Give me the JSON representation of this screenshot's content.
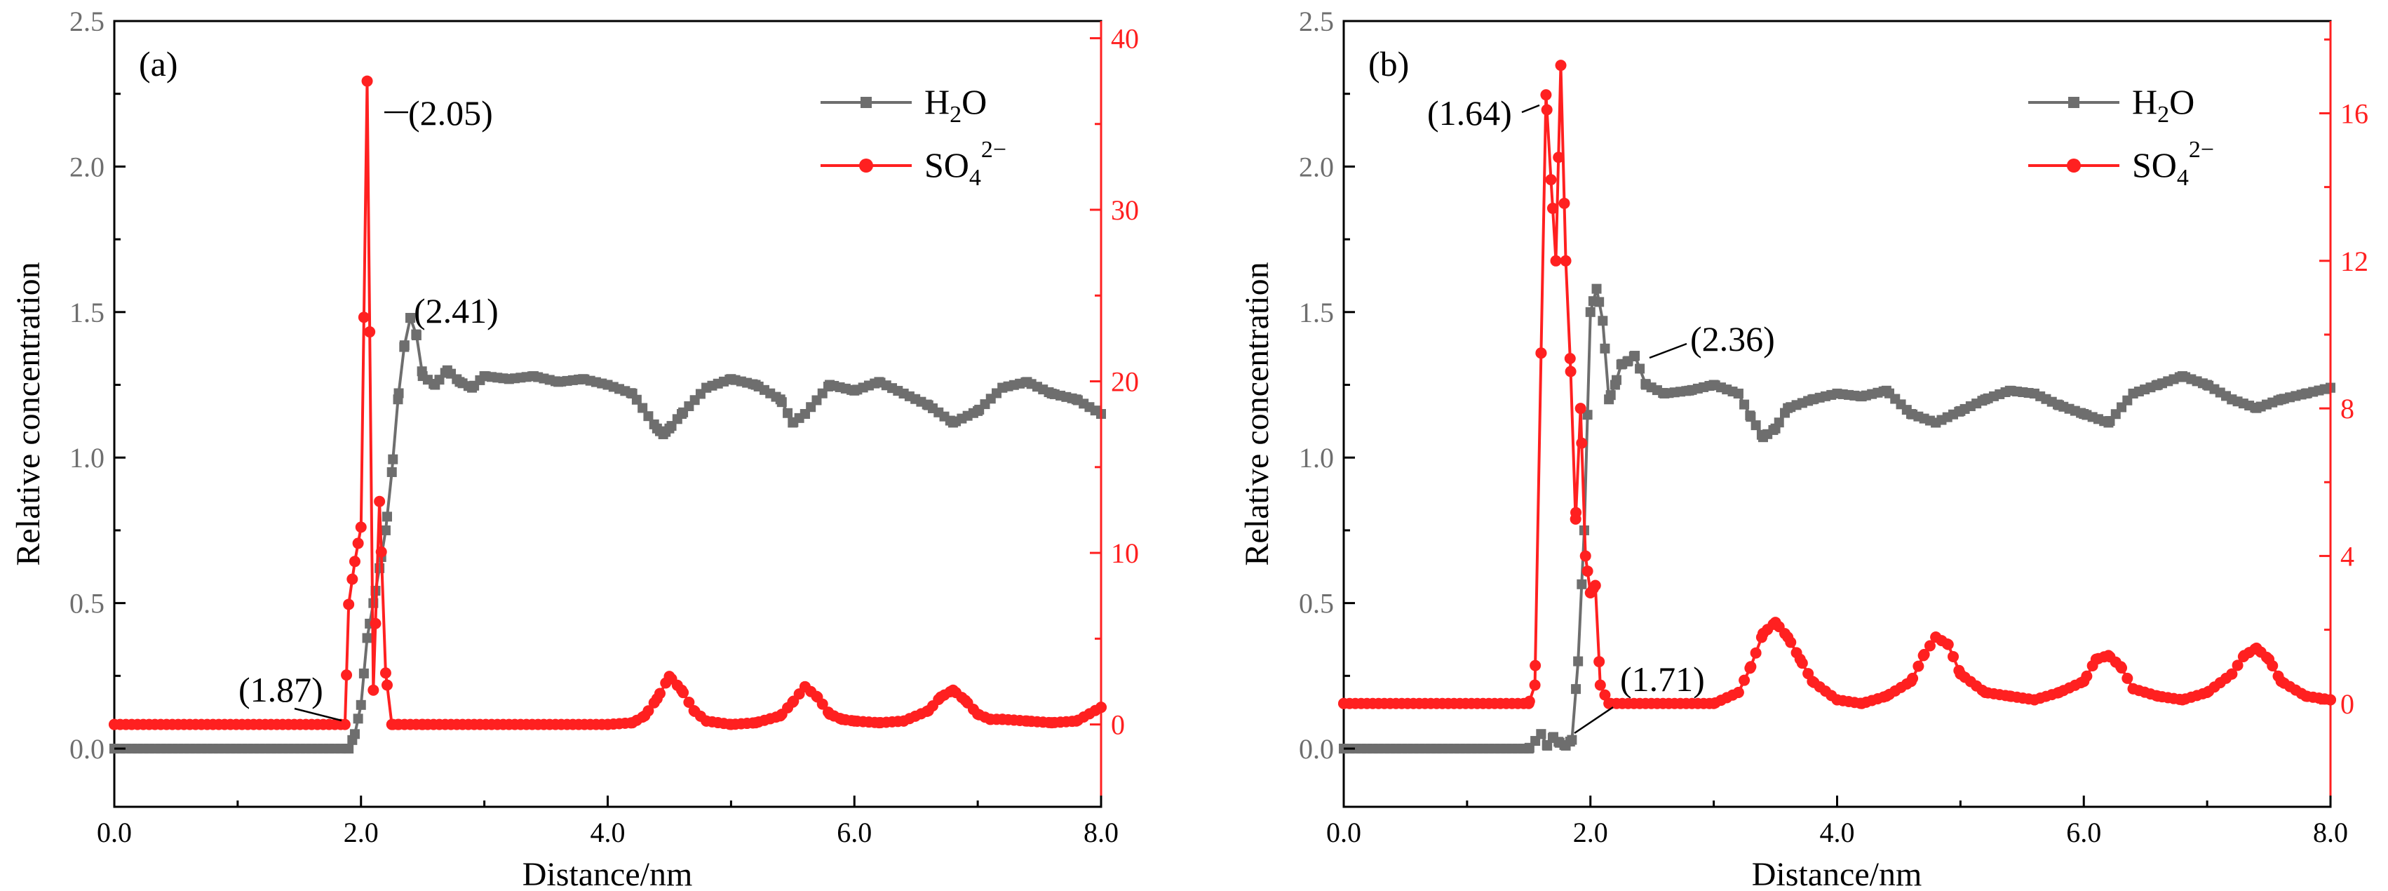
{
  "colors": {
    "h2o": "#6e6e6e",
    "so4": "#ff2020",
    "axis": "#000000"
  },
  "legend": {
    "h2o": "H2O",
    "so4": "SO42-",
    "h2o_base": "H",
    "h2o_sub": "2",
    "h2o_tail": "O",
    "so4_base": "SO",
    "so4_sub": "4",
    "so4_sup": "2−"
  },
  "chart_data": [
    {
      "type": "line",
      "panel_label": "(a)",
      "xlabel": "Distance/nm",
      "ylabel": "Relative concentration",
      "xlim": [
        0,
        8
      ],
      "ylim_left": [
        -0.2,
        2.5
      ],
      "ylim_right": [
        -4.8,
        41
      ],
      "xticks": [
        "0.0",
        "2.0",
        "4.0",
        "6.0",
        "8.0"
      ],
      "yticks_left": [
        "0.0",
        "0.5",
        "1.0",
        "1.5",
        "2.0",
        "2.5"
      ],
      "yticks_right": [
        "0",
        "10",
        "20",
        "30",
        "40"
      ],
      "legend_position": "top-right",
      "annotations": [
        {
          "text": "(2.05)",
          "x": 2.05,
          "y_right": 37.5
        },
        {
          "text": "(2.41)",
          "x": 2.41,
          "y_left": 1.48
        },
        {
          "text": "(1.87)",
          "x": 1.87,
          "y_right": 0.2
        }
      ],
      "series": [
        {
          "name": "H2O",
          "axis": "left",
          "x": [
            0.0,
            1.9,
            1.95,
            2.0,
            2.05,
            2.1,
            2.15,
            2.2,
            2.25,
            2.3,
            2.35,
            2.4,
            2.45,
            2.5,
            2.6,
            2.7,
            2.8,
            2.9,
            3.0,
            3.2,
            3.4,
            3.6,
            3.8,
            4.0,
            4.2,
            4.4,
            4.45,
            4.5,
            4.6,
            4.8,
            5.0,
            5.2,
            5.4,
            5.5,
            5.6,
            5.8,
            6.0,
            6.2,
            6.4,
            6.6,
            6.8,
            7.0,
            7.2,
            7.4,
            7.6,
            7.8,
            8.0
          ],
          "values": [
            0.0,
            0.0,
            0.05,
            0.15,
            0.38,
            0.5,
            0.62,
            0.75,
            0.95,
            1.2,
            1.38,
            1.48,
            1.42,
            1.28,
            1.25,
            1.3,
            1.26,
            1.24,
            1.28,
            1.27,
            1.28,
            1.26,
            1.27,
            1.25,
            1.22,
            1.1,
            1.08,
            1.1,
            1.15,
            1.24,
            1.27,
            1.25,
            1.2,
            1.12,
            1.15,
            1.25,
            1.23,
            1.26,
            1.22,
            1.18,
            1.12,
            1.16,
            1.24,
            1.26,
            1.22,
            1.2,
            1.15
          ]
        },
        {
          "name": "SO42-",
          "axis": "right",
          "x": [
            0.0,
            1.87,
            1.9,
            1.95,
            2.0,
            2.05,
            2.1,
            2.15,
            2.2,
            2.25,
            2.3,
            2.5,
            4.0,
            4.2,
            4.3,
            4.4,
            4.5,
            4.6,
            4.7,
            4.8,
            5.0,
            5.2,
            5.4,
            5.5,
            5.6,
            5.7,
            5.8,
            5.9,
            6.0,
            6.2,
            6.4,
            6.6,
            6.7,
            6.8,
            6.9,
            7.0,
            7.1,
            7.2,
            7.4,
            7.6,
            7.8,
            8.0
          ],
          "values": [
            0.0,
            0.0,
            7.0,
            9.5,
            11.5,
            37.5,
            2.0,
            13.0,
            3.0,
            0.0,
            0.0,
            0.0,
            0.0,
            0.1,
            0.5,
            1.5,
            2.8,
            2.0,
            0.8,
            0.2,
            0.0,
            0.1,
            0.5,
            1.3,
            2.2,
            1.6,
            0.6,
            0.3,
            0.2,
            0.1,
            0.2,
            0.8,
            1.6,
            2.0,
            1.4,
            0.6,
            0.3,
            0.3,
            0.2,
            0.1,
            0.2,
            1.0
          ]
        }
      ]
    },
    {
      "type": "line",
      "panel_label": "(b)",
      "xlabel": "Distance/nm",
      "ylabel": "Relative concentration",
      "xlim": [
        0,
        8
      ],
      "ylim_left": [
        -0.2,
        2.5
      ],
      "ylim_right": [
        -2.8,
        18.5
      ],
      "xticks": [
        "0.0",
        "2.0",
        "4.0",
        "6.0",
        "8.0"
      ],
      "yticks_left": [
        "0.0",
        "0.5",
        "1.0",
        "1.5",
        "2.0",
        "2.5"
      ],
      "yticks_right": [
        "0",
        "4",
        "8",
        "12",
        "16"
      ],
      "legend_position": "top-right",
      "annotations": [
        {
          "text": "(1.64)",
          "x": 1.64,
          "y_right": 16.8
        },
        {
          "text": "(2.36)",
          "x": 2.36,
          "y_left": 1.33
        },
        {
          "text": "(1.71)",
          "x": 1.71,
          "y_left": 0.04
        }
      ],
      "series": [
        {
          "name": "H2O",
          "axis": "left",
          "x": [
            0.0,
            1.5,
            1.6,
            1.65,
            1.7,
            1.75,
            1.8,
            1.85,
            1.9,
            1.95,
            2.0,
            2.05,
            2.1,
            2.15,
            2.2,
            2.25,
            2.3,
            2.36,
            2.45,
            2.6,
            2.8,
            3.0,
            3.2,
            3.3,
            3.4,
            3.5,
            3.6,
            3.8,
            4.0,
            4.2,
            4.4,
            4.6,
            4.8,
            5.0,
            5.2,
            5.4,
            5.6,
            5.8,
            6.0,
            6.2,
            6.4,
            6.6,
            6.8,
            7.0,
            7.2,
            7.4,
            7.6,
            7.8,
            8.0
          ],
          "values": [
            0.0,
            0.0,
            0.05,
            0.01,
            0.04,
            0.02,
            0.01,
            0.03,
            0.3,
            0.75,
            1.5,
            1.58,
            1.47,
            1.2,
            1.25,
            1.32,
            1.33,
            1.35,
            1.25,
            1.22,
            1.23,
            1.25,
            1.22,
            1.14,
            1.07,
            1.1,
            1.17,
            1.2,
            1.22,
            1.21,
            1.23,
            1.15,
            1.12,
            1.16,
            1.2,
            1.23,
            1.22,
            1.18,
            1.15,
            1.12,
            1.22,
            1.25,
            1.28,
            1.25,
            1.2,
            1.17,
            1.2,
            1.22,
            1.24
          ]
        },
        {
          "name": "SO42-",
          "axis": "right",
          "x": [
            0.0,
            1.5,
            1.55,
            1.6,
            1.64,
            1.68,
            1.72,
            1.76,
            1.8,
            1.84,
            1.88,
            1.92,
            1.96,
            2.0,
            2.04,
            2.08,
            2.15,
            3.0,
            3.2,
            3.3,
            3.4,
            3.5,
            3.6,
            3.7,
            3.8,
            4.0,
            4.2,
            4.4,
            4.6,
            4.7,
            4.8,
            4.9,
            5.0,
            5.2,
            5.4,
            5.6,
            5.8,
            6.0,
            6.1,
            6.2,
            6.3,
            6.4,
            6.6,
            6.8,
            7.0,
            7.2,
            7.3,
            7.4,
            7.5,
            7.6,
            7.8,
            8.0
          ],
          "values": [
            0.0,
            0.0,
            0.5,
            9.5,
            16.5,
            14.2,
            12.0,
            17.3,
            12.0,
            9.0,
            5.0,
            8.0,
            4.0,
            3.0,
            3.2,
            0.5,
            0.0,
            0.0,
            0.3,
            1.0,
            1.9,
            2.2,
            1.8,
            1.2,
            0.6,
            0.1,
            0.0,
            0.2,
            0.6,
            1.3,
            1.8,
            1.6,
            0.8,
            0.3,
            0.2,
            0.1,
            0.3,
            0.6,
            1.2,
            1.3,
            1.0,
            0.4,
            0.2,
            0.1,
            0.3,
            0.8,
            1.3,
            1.5,
            1.2,
            0.6,
            0.2,
            0.1
          ]
        }
      ]
    }
  ]
}
